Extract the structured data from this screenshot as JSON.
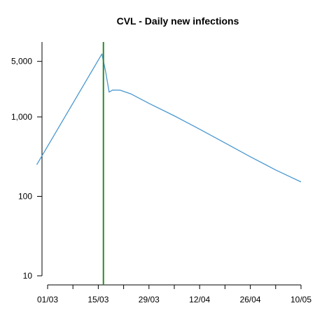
{
  "chart_data": {
    "type": "line",
    "title": "CVL - Daily new infections",
    "xlabel": "",
    "ylabel": "",
    "y_scale": "log",
    "ylim": [
      10,
      8000
    ],
    "xlim": [
      "2020-02-26",
      "2020-05-10"
    ],
    "grid": false,
    "x_ticks": [
      {
        "date": "2020-03-01",
        "label": "01/03"
      },
      {
        "date": "2020-03-15",
        "label": "15/03"
      },
      {
        "date": "2020-03-29",
        "label": "29/03"
      },
      {
        "date": "2020-04-12",
        "label": "12/04"
      },
      {
        "date": "2020-04-26",
        "label": "26/04"
      },
      {
        "date": "2020-05-10",
        "label": "10/05"
      }
    ],
    "x_minor_ticks": [
      "2020-03-08",
      "2020-03-22",
      "2020-04-05",
      "2020-04-19",
      "2020-05-03"
    ],
    "y_ticks": [
      {
        "value": 10,
        "label": "10"
      },
      {
        "value": 100,
        "label": "100"
      },
      {
        "value": 1000,
        "label": "1,000"
      },
      {
        "value": 5000,
        "label": "5,000"
      }
    ],
    "series": [
      {
        "color": "#4a98d0",
        "points": [
          {
            "x": "2020-02-27",
            "y": 250
          },
          {
            "x": "2020-03-16",
            "y": 6200
          },
          {
            "x": "2020-03-17",
            "y": 3800
          },
          {
            "x": "2020-03-18",
            "y": 2050
          },
          {
            "x": "2020-03-19",
            "y": 2180
          },
          {
            "x": "2020-03-21",
            "y": 2170
          },
          {
            "x": "2020-03-24",
            "y": 1950
          },
          {
            "x": "2020-03-29",
            "y": 1480
          },
          {
            "x": "2020-04-05",
            "y": 1030
          },
          {
            "x": "2020-04-12",
            "y": 700
          },
          {
            "x": "2020-04-19",
            "y": 470
          },
          {
            "x": "2020-04-26",
            "y": 315
          },
          {
            "x": "2020-05-03",
            "y": 215
          },
          {
            "x": "2020-05-10",
            "y": 152
          }
        ]
      }
    ],
    "vertical_line": {
      "x": "2020-03-17",
      "color": "#2a8a2a"
    }
  }
}
